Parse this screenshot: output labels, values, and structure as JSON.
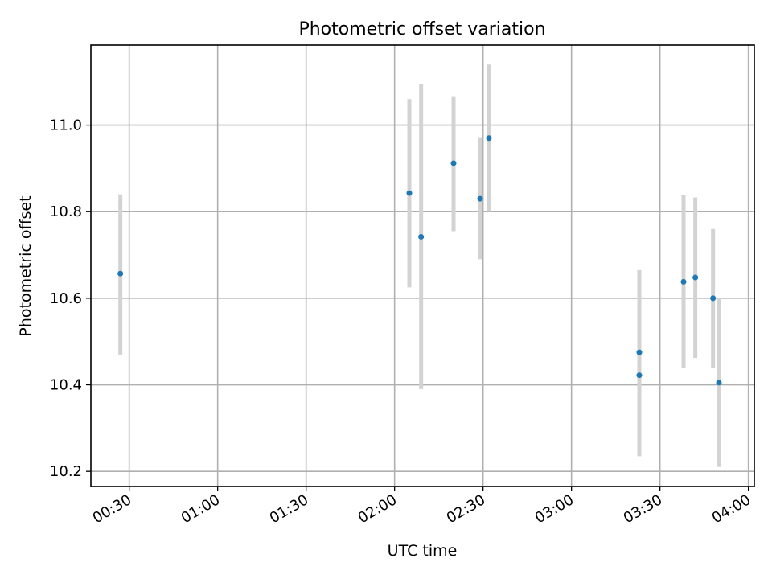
{
  "chart_data": {
    "type": "scatter",
    "title": "Photometric offset variation",
    "xlabel": "UTC time",
    "ylabel": "Photometric offset",
    "x_is_time": true,
    "xlim": [
      "00:17",
      "04:02"
    ],
    "ylim": [
      10.165,
      11.185
    ],
    "xticks": [
      "00:30",
      "01:00",
      "01:30",
      "02:00",
      "02:30",
      "03:00",
      "03:30",
      "04:00"
    ],
    "yticks": [
      10.2,
      10.4,
      10.6,
      10.8,
      11.0
    ],
    "ytick_labels": [
      "10.2",
      "10.4",
      "10.6",
      "10.8",
      "11.0"
    ],
    "grid": true,
    "marker_color": "#1f77b4",
    "errorbar_color": "#d3d3d3",
    "points": [
      {
        "time": "00:27",
        "y": 10.657,
        "ylow": 10.47,
        "yhigh": 10.84
      },
      {
        "time": "02:05",
        "y": 10.843,
        "ylow": 10.625,
        "yhigh": 11.06
      },
      {
        "time": "02:09",
        "y": 10.742,
        "ylow": 10.39,
        "yhigh": 11.095
      },
      {
        "time": "02:20",
        "y": 10.912,
        "ylow": 10.755,
        "yhigh": 11.065
      },
      {
        "time": "02:29",
        "y": 10.83,
        "ylow": 10.69,
        "yhigh": 10.972
      },
      {
        "time": "02:32",
        "y": 10.97,
        "ylow": 10.8,
        "yhigh": 11.14
      },
      {
        "time": "03:23",
        "y": 10.422,
        "ylow": 10.235,
        "yhigh": 10.61
      },
      {
        "time": "03:23",
        "y": 10.475,
        "ylow": 10.285,
        "yhigh": 10.665
      },
      {
        "time": "03:38",
        "y": 10.638,
        "ylow": 10.44,
        "yhigh": 10.838
      },
      {
        "time": "03:42",
        "y": 10.648,
        "ylow": 10.462,
        "yhigh": 10.833
      },
      {
        "time": "03:48",
        "y": 10.6,
        "ylow": 10.44,
        "yhigh": 10.76
      },
      {
        "time": "03:50",
        "y": 10.405,
        "ylow": 10.21,
        "yhigh": 10.6
      }
    ]
  }
}
